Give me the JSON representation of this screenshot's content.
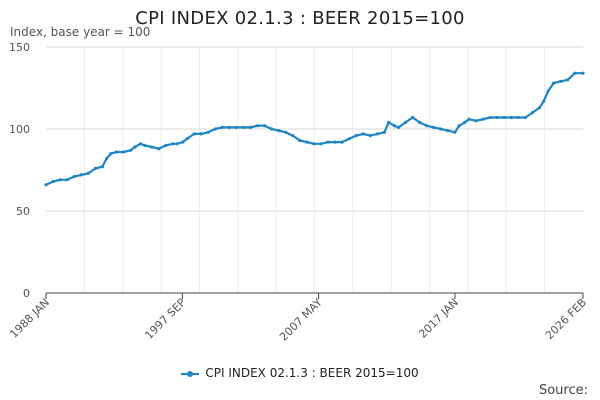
{
  "chart_data": {
    "type": "line",
    "title": "CPI INDEX 02.1.3 : BEER 2015=100",
    "ylabel": "Index, base year = 100",
    "xlabel": "",
    "ylim": [
      0,
      150
    ],
    "yticks": [
      0,
      50,
      100,
      150
    ],
    "xlim": [
      1988.0,
      2026.083
    ],
    "xticks": [
      {
        "label": "1988 JAN",
        "x": 1988.0
      },
      {
        "label": "1997 SEP",
        "x": 1997.667
      },
      {
        "label": "2007 MAY",
        "x": 2007.333
      },
      {
        "label": "2017 JAN",
        "x": 2017.0
      },
      {
        "label": "2026 FEB",
        "x": 2026.083
      }
    ],
    "grid": true,
    "legend_position": "bottom",
    "series": [
      {
        "name": "CPI INDEX 02.1.3 : BEER 2015=100",
        "color": "#1f85c4",
        "points": [
          [
            1988.0,
            66
          ],
          [
            1988.5,
            68
          ],
          [
            1989.0,
            69
          ],
          [
            1989.5,
            69
          ],
          [
            1990.0,
            71
          ],
          [
            1990.5,
            72
          ],
          [
            1991.0,
            73
          ],
          [
            1991.5,
            76
          ],
          [
            1992.0,
            77
          ],
          [
            1992.3,
            82
          ],
          [
            1992.6,
            85
          ],
          [
            1993.0,
            86
          ],
          [
            1993.5,
            86
          ],
          [
            1994.0,
            87
          ],
          [
            1994.3,
            89
          ],
          [
            1994.7,
            91
          ],
          [
            1995.0,
            90
          ],
          [
            1995.5,
            89
          ],
          [
            1996.0,
            88
          ],
          [
            1996.5,
            90
          ],
          [
            1997.0,
            91
          ],
          [
            1997.3,
            91
          ],
          [
            1997.7,
            92
          ],
          [
            1998.0,
            94
          ],
          [
            1998.5,
            97
          ],
          [
            1999.0,
            97
          ],
          [
            1999.5,
            98
          ],
          [
            2000.0,
            100
          ],
          [
            2000.5,
            101
          ],
          [
            2001.0,
            101
          ],
          [
            2001.5,
            101
          ],
          [
            2002.0,
            101
          ],
          [
            2002.5,
            101
          ],
          [
            2003.0,
            102
          ],
          [
            2003.5,
            102
          ],
          [
            2004.0,
            100
          ],
          [
            2004.5,
            99
          ],
          [
            2005.0,
            98
          ],
          [
            2005.5,
            96
          ],
          [
            2006.0,
            93
          ],
          [
            2006.5,
            92
          ],
          [
            2007.0,
            91
          ],
          [
            2007.5,
            91
          ],
          [
            2008.0,
            92
          ],
          [
            2008.5,
            92
          ],
          [
            2009.0,
            92
          ],
          [
            2009.5,
            94
          ],
          [
            2010.0,
            96
          ],
          [
            2010.5,
            97
          ],
          [
            2011.0,
            96
          ],
          [
            2011.5,
            97
          ],
          [
            2012.0,
            98
          ],
          [
            2012.3,
            104
          ],
          [
            2012.7,
            102
          ],
          [
            2013.0,
            101
          ],
          [
            2013.5,
            104
          ],
          [
            2014.0,
            107
          ],
          [
            2014.5,
            104
          ],
          [
            2015.0,
            102
          ],
          [
            2015.5,
            101
          ],
          [
            2016.0,
            100
          ],
          [
            2016.5,
            99
          ],
          [
            2017.0,
            98
          ],
          [
            2017.3,
            102
          ],
          [
            2017.7,
            104
          ],
          [
            2018.0,
            106
          ],
          [
            2018.5,
            105
          ],
          [
            2019.0,
            106
          ],
          [
            2019.5,
            107
          ],
          [
            2020.0,
            107
          ],
          [
            2020.5,
            107
          ],
          [
            2021.0,
            107
          ],
          [
            2021.5,
            107
          ],
          [
            2022.0,
            107
          ],
          [
            2022.5,
            110
          ],
          [
            2023.0,
            113
          ],
          [
            2023.3,
            117
          ],
          [
            2023.6,
            123
          ],
          [
            2024.0,
            128
          ],
          [
            2024.5,
            129
          ],
          [
            2025.0,
            130
          ],
          [
            2025.5,
            134
          ],
          [
            2026.083,
            134
          ]
        ]
      }
    ],
    "source_label": "Source:"
  }
}
